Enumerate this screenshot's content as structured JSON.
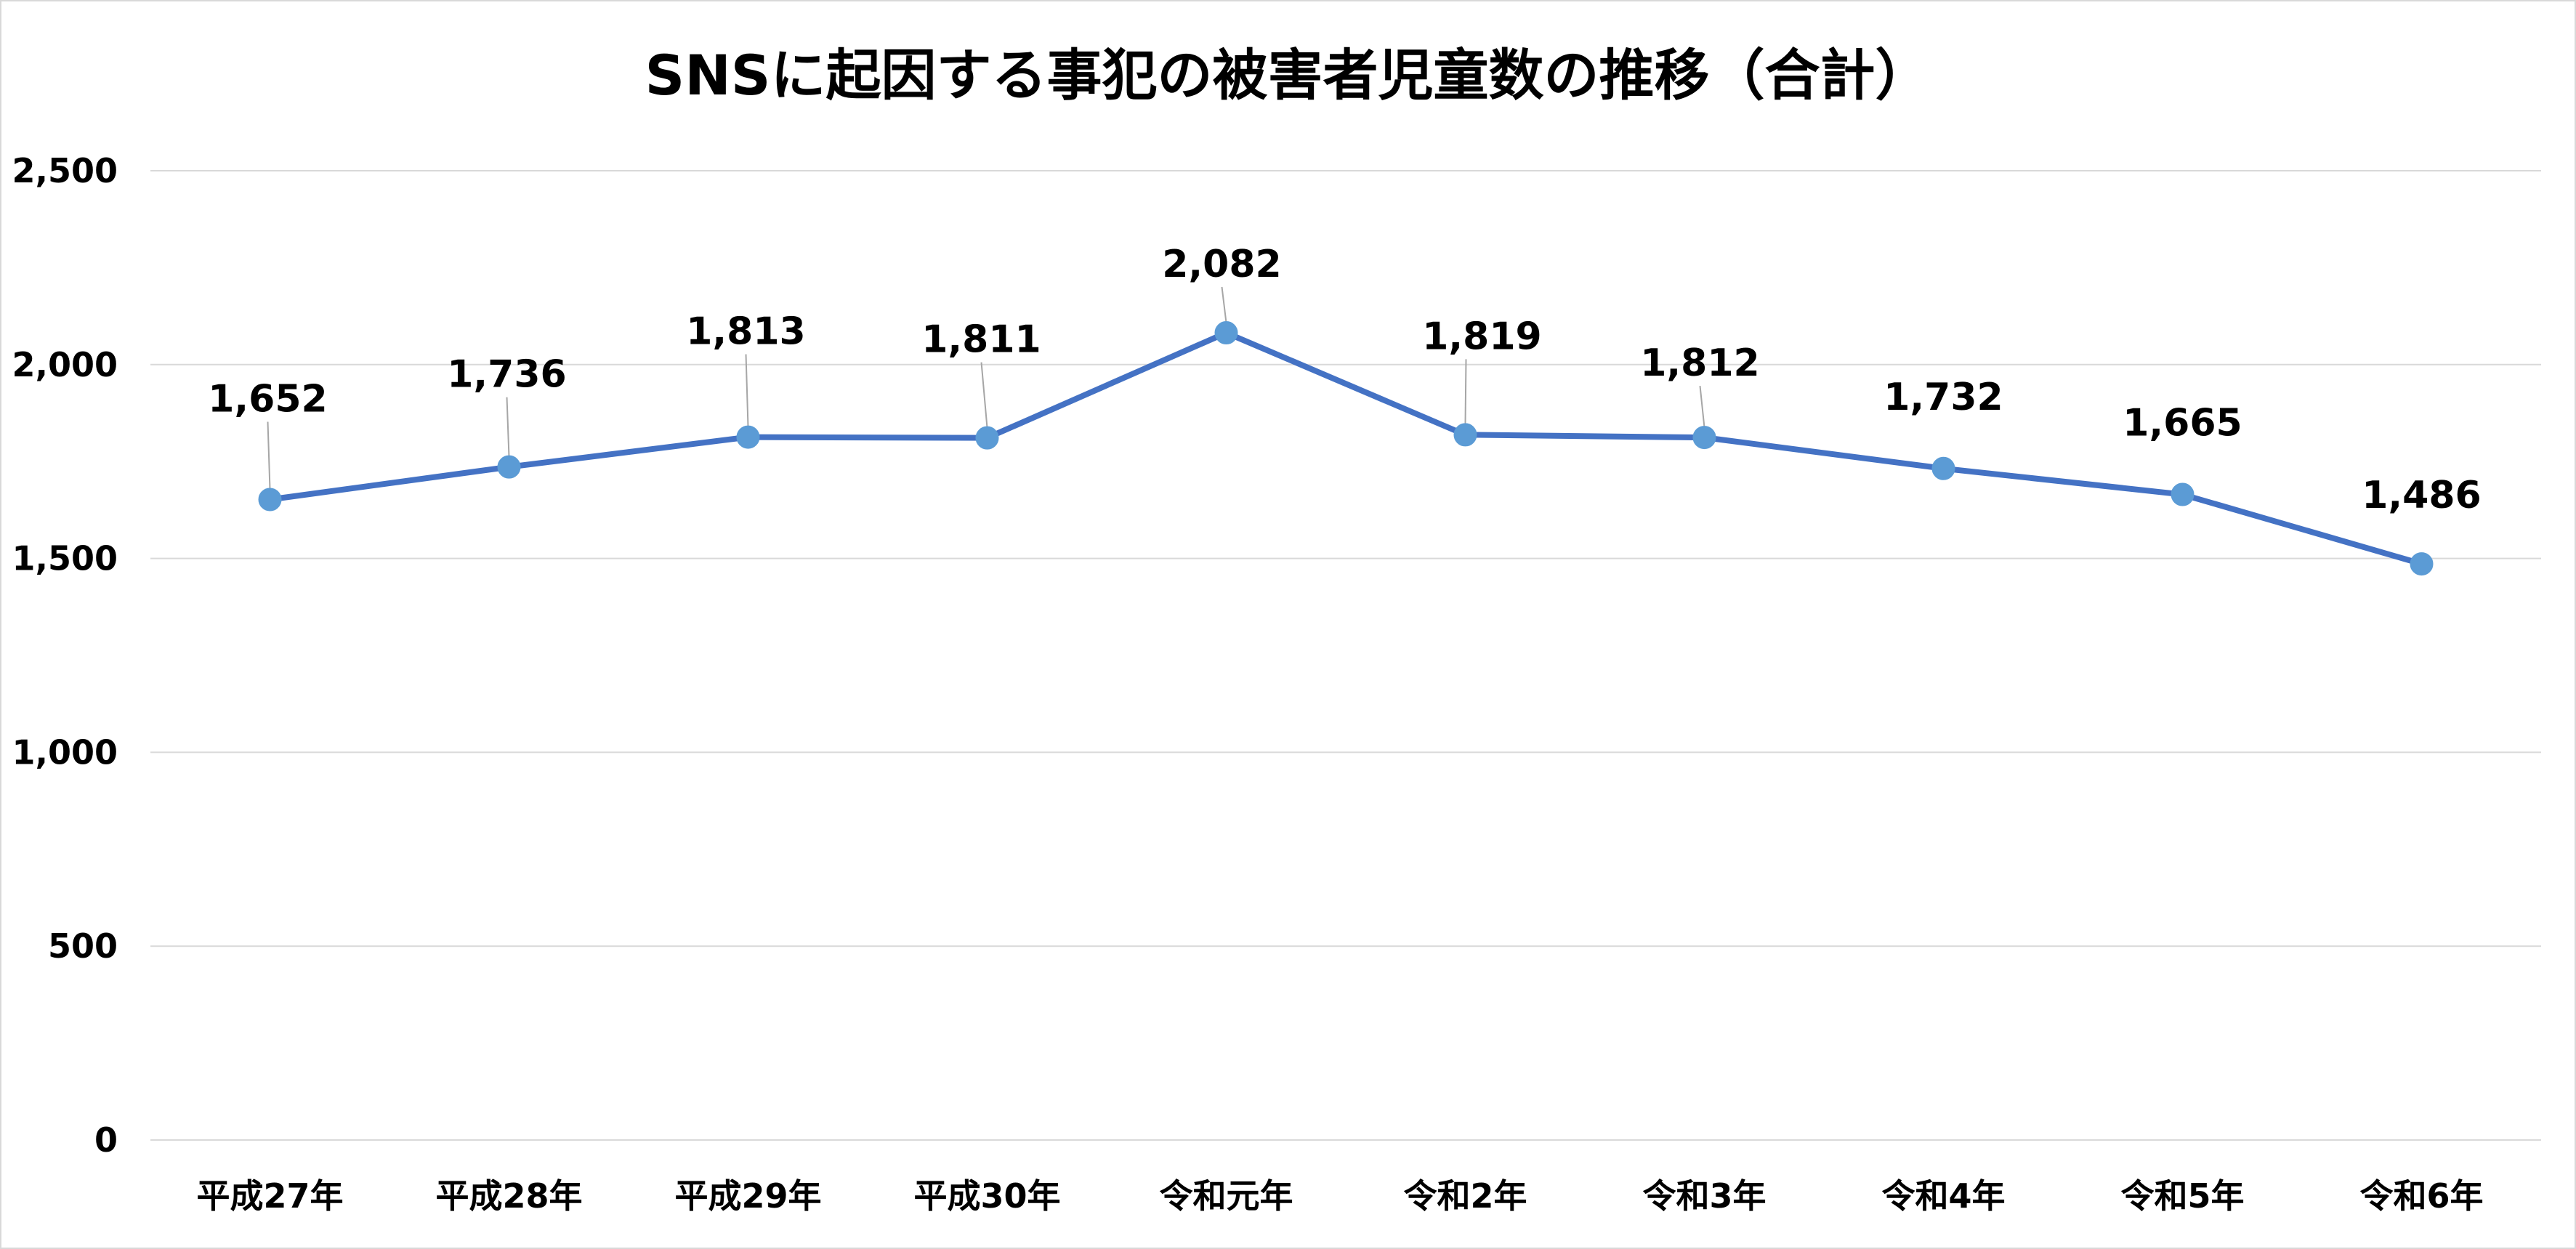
{
  "chart_data": {
    "type": "line",
    "title": "SNSに起因する事犯の被害者児童数の推移（合計）",
    "categories": [
      "平成27年",
      "平成28年",
      "平成29年",
      "平成30年",
      "令和元年",
      "令和2年",
      "令和3年",
      "令和4年",
      "令和5年",
      "令和6年"
    ],
    "series": [
      {
        "values": [
          1652,
          1736,
          1813,
          1811,
          2082,
          1819,
          1812,
          1732,
          1665,
          1486
        ],
        "labels": [
          "1,652",
          "1,736",
          "1,813",
          "1,811",
          "2,082",
          "1,819",
          "1,812",
          "1,732",
          "1,665",
          "1,486"
        ]
      }
    ],
    "ylim": [
      0,
      2500
    ],
    "yticks": [
      0,
      500,
      1000,
      1500,
      2000,
      2500
    ],
    "ytick_labels": [
      "0",
      "500",
      "1,000",
      "1,500",
      "2,000",
      "2,500"
    ],
    "grid": true,
    "legend": "none",
    "colors": {
      "line": "#4472c4",
      "marker": "#5b9bd5",
      "grid": "#d9d9d9",
      "leader": "#a6a6a6"
    }
  }
}
